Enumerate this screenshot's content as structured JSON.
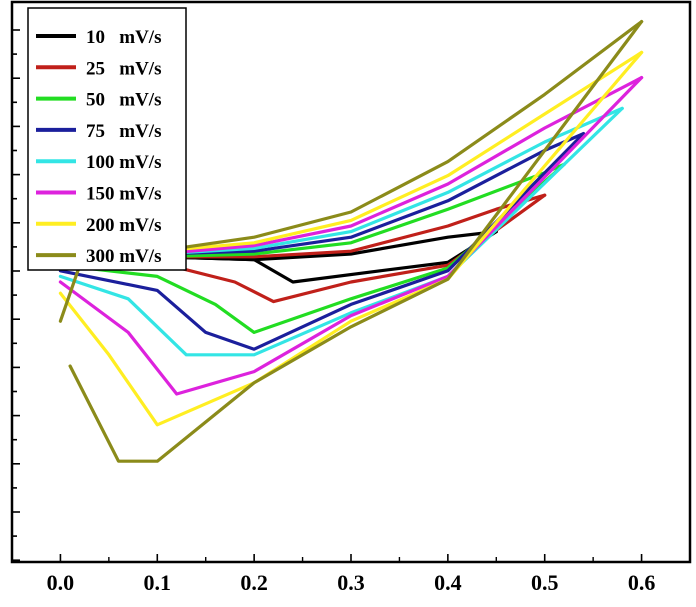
{
  "chart_data": {
    "type": "line",
    "title": "",
    "xlabel": "",
    "ylabel": "",
    "xlim": [
      -0.05,
      0.65
    ],
    "ylim": [
      0,
      1
    ],
    "x_ticks": [
      0.0,
      0.1,
      0.2,
      0.3,
      0.4,
      0.5,
      0.6
    ],
    "x_tick_labels": [
      "0.0",
      "0.1",
      "0.2",
      "0.3",
      "0.4",
      "0.5",
      "0.6"
    ],
    "y_tick_labels_shown": false,
    "grid": false,
    "legend_position": "top-left",
    "series": [
      {
        "name": "10   mV/s",
        "color": "#000000",
        "forward": [
          [
            0.0,
            0.545
          ],
          [
            0.1,
            0.545
          ],
          [
            0.2,
            0.54
          ],
          [
            0.3,
            0.55
          ],
          [
            0.35,
            0.565
          ],
          [
            0.4,
            0.58
          ],
          [
            0.45,
            0.59
          ]
        ],
        "reverse": [
          [
            0.45,
            0.59
          ],
          [
            0.4,
            0.535
          ],
          [
            0.33,
            0.52
          ],
          [
            0.24,
            0.5
          ],
          [
            0.2,
            0.54
          ],
          [
            0.1,
            0.545
          ],
          [
            0.0,
            0.545
          ]
        ]
      },
      {
        "name": "25   mV/s",
        "color": "#c0201a",
        "forward": [
          [
            0.0,
            0.545
          ],
          [
            0.1,
            0.545
          ],
          [
            0.2,
            0.545
          ],
          [
            0.3,
            0.555
          ],
          [
            0.4,
            0.6
          ],
          [
            0.45,
            0.63
          ],
          [
            0.5,
            0.655
          ]
        ],
        "reverse": [
          [
            0.5,
            0.655
          ],
          [
            0.4,
            0.53
          ],
          [
            0.3,
            0.5
          ],
          [
            0.22,
            0.465
          ],
          [
            0.18,
            0.5
          ],
          [
            0.1,
            0.535
          ],
          [
            0.0,
            0.54
          ]
        ]
      },
      {
        "name": "50   mV/s",
        "color": "#22dd22",
        "forward": [
          [
            0.0,
            0.54
          ],
          [
            0.1,
            0.545
          ],
          [
            0.2,
            0.55
          ],
          [
            0.3,
            0.57
          ],
          [
            0.4,
            0.63
          ],
          [
            0.5,
            0.695
          ],
          [
            0.52,
            0.71
          ]
        ],
        "reverse": [
          [
            0.52,
            0.71
          ],
          [
            0.4,
            0.525
          ],
          [
            0.3,
            0.47
          ],
          [
            0.2,
            0.41
          ],
          [
            0.16,
            0.46
          ],
          [
            0.1,
            0.51
          ],
          [
            0.0,
            0.53
          ]
        ]
      },
      {
        "name": "75   mV/s",
        "color": "#1b1f9c",
        "forward": [
          [
            0.0,
            0.54
          ],
          [
            0.1,
            0.55
          ],
          [
            0.2,
            0.555
          ],
          [
            0.3,
            0.58
          ],
          [
            0.4,
            0.645
          ],
          [
            0.5,
            0.735
          ],
          [
            0.54,
            0.765
          ]
        ],
        "reverse": [
          [
            0.54,
            0.765
          ],
          [
            0.4,
            0.52
          ],
          [
            0.3,
            0.46
          ],
          [
            0.2,
            0.38
          ],
          [
            0.15,
            0.41
          ],
          [
            0.1,
            0.485
          ],
          [
            0.0,
            0.52
          ]
        ]
      },
      {
        "name": "100 mV/s",
        "color": "#33e5e5",
        "forward": [
          [
            0.0,
            0.54
          ],
          [
            0.1,
            0.55
          ],
          [
            0.2,
            0.56
          ],
          [
            0.3,
            0.59
          ],
          [
            0.4,
            0.66
          ],
          [
            0.5,
            0.75
          ],
          [
            0.58,
            0.81
          ]
        ],
        "reverse": [
          [
            0.58,
            0.81
          ],
          [
            0.4,
            0.51
          ],
          [
            0.3,
            0.445
          ],
          [
            0.2,
            0.37
          ],
          [
            0.13,
            0.37
          ],
          [
            0.07,
            0.47
          ],
          [
            0.0,
            0.51
          ]
        ]
      },
      {
        "name": "150 mV/s",
        "color": "#dd22dd",
        "forward": [
          [
            0.0,
            0.54
          ],
          [
            0.1,
            0.55
          ],
          [
            0.2,
            0.565
          ],
          [
            0.3,
            0.6
          ],
          [
            0.4,
            0.675
          ],
          [
            0.5,
            0.775
          ],
          [
            0.6,
            0.865
          ]
        ],
        "reverse": [
          [
            0.6,
            0.865
          ],
          [
            0.4,
            0.51
          ],
          [
            0.3,
            0.44
          ],
          [
            0.2,
            0.34
          ],
          [
            0.12,
            0.3
          ],
          [
            0.07,
            0.41
          ],
          [
            0.0,
            0.5
          ]
        ]
      },
      {
        "name": "200 mV/s",
        "color": "#ffee22",
        "forward": [
          [
            0.0,
            0.54
          ],
          [
            0.1,
            0.555
          ],
          [
            0.2,
            0.57
          ],
          [
            0.3,
            0.61
          ],
          [
            0.4,
            0.69
          ],
          [
            0.5,
            0.8
          ],
          [
            0.6,
            0.91
          ]
        ],
        "reverse": [
          [
            0.6,
            0.91
          ],
          [
            0.4,
            0.505
          ],
          [
            0.3,
            0.43
          ],
          [
            0.2,
            0.32
          ],
          [
            0.1,
            0.245
          ],
          [
            0.05,
            0.37
          ],
          [
            0.0,
            0.48
          ]
        ]
      },
      {
        "name": "300 mV/s",
        "color": "#8b8b1a",
        "forward": [
          [
            0.0,
            0.43
          ],
          [
            0.02,
            0.53
          ],
          [
            0.1,
            0.555
          ],
          [
            0.2,
            0.58
          ],
          [
            0.3,
            0.625
          ],
          [
            0.4,
            0.715
          ],
          [
            0.5,
            0.835
          ],
          [
            0.6,
            0.965
          ]
        ],
        "reverse": [
          [
            0.6,
            0.965
          ],
          [
            0.4,
            0.505
          ],
          [
            0.3,
            0.42
          ],
          [
            0.2,
            0.32
          ],
          [
            0.1,
            0.18
          ],
          [
            0.06,
            0.18
          ],
          [
            0.01,
            0.35
          ]
        ]
      }
    ]
  }
}
